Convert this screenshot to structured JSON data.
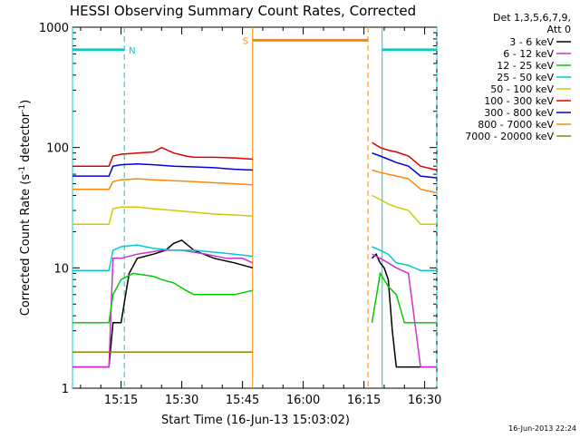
{
  "chart_data": {
    "type": "line",
    "title": "HESSI Observing Summary Count Rates, Corrected",
    "xlabel": "Start Time (16-Jun-13 15:03:02)",
    "ylabel": "Corrected Count Rate (s⁻¹ detector⁻¹)",
    "ylabel_main": "Corrected Count Rate (s",
    "ylabel_mid": " detector",
    "ylabel_end": ")",
    "ylabel_sup": "-1",
    "x_unit": "minutes after 15:03:02",
    "xlim": [
      0,
      90
    ],
    "ylim": [
      1,
      1000
    ],
    "yscale": "log",
    "x_ticks": [
      {
        "x": 12,
        "label": "15:15"
      },
      {
        "x": 27,
        "label": "15:30"
      },
      {
        "x": 42,
        "label": "15:45"
      },
      {
        "x": 57,
        "label": "16:00"
      },
      {
        "x": 72,
        "label": "16:15"
      },
      {
        "x": 87,
        "label": "16:30"
      }
    ],
    "y_ticks": [
      {
        "y": 1,
        "label": "1"
      },
      {
        "y": 10,
        "label": "10"
      },
      {
        "y": 100,
        "label": "100"
      },
      {
        "y": 1000,
        "label": "1000"
      }
    ],
    "legend_position": "right",
    "legend_header": [
      "Det 1,3,5,6,7,9,",
      "Att 0"
    ],
    "series": [
      {
        "name": "3 - 6 keV",
        "color": "#000000",
        "x": [
          0,
          9,
          10,
          12,
          14,
          16,
          20,
          23,
          25,
          27,
          30,
          35,
          40,
          44.5,
          72.5,
          74,
          75,
          76,
          77,
          78,
          79,
          80,
          83,
          86,
          90
        ],
        "y": [
          1.5,
          1.5,
          3.5,
          3.5,
          9,
          12,
          13,
          14,
          16,
          17,
          14,
          12,
          11,
          10,
          null,
          12,
          13,
          11,
          10,
          8,
          3,
          1.5,
          1.5,
          1.5,
          1.5
        ]
      },
      {
        "name": "6 - 12 keV",
        "color": "#cc33cc",
        "x": [
          0,
          9,
          10,
          12,
          16,
          22,
          27,
          33,
          38,
          42,
          44.5,
          72.5,
          74,
          76,
          78,
          80,
          83,
          86,
          90
        ],
        "y": [
          1.5,
          1.5,
          12,
          12,
          13,
          14,
          14,
          13,
          12,
          12,
          11,
          null,
          13,
          12,
          11,
          10,
          9,
          1.5,
          1.5
        ]
      },
      {
        "name": "12 - 25 keV",
        "color": "#00cc00",
        "x": [
          0,
          9,
          10,
          12,
          15,
          20,
          22,
          25,
          28,
          30,
          35,
          40,
          44.5,
          72.5,
          74,
          76,
          78,
          80,
          82,
          83,
          86,
          90
        ],
        "y": [
          3.5,
          3.5,
          6,
          8,
          9,
          8.5,
          8,
          7.5,
          6.5,
          6,
          6,
          6,
          6.5,
          null,
          3.5,
          9,
          7,
          6,
          3.5,
          3.5,
          3.5,
          3.5
        ]
      },
      {
        "name": "25 - 50 keV",
        "color": "#00cccc",
        "x": [
          0,
          9,
          10,
          12,
          16,
          20,
          25,
          30,
          35,
          40,
          44.5,
          72.5,
          74,
          76,
          78,
          80,
          83,
          86,
          90
        ],
        "y": [
          9.5,
          9.5,
          14,
          15,
          15.5,
          14.5,
          14,
          14,
          13.5,
          13,
          12.5,
          null,
          15,
          14,
          13,
          11,
          10.5,
          9.5,
          9.5
        ]
      },
      {
        "name": "50 - 100 keV",
        "color": "#cccc00",
        "x": [
          0,
          9,
          10,
          12,
          16,
          20,
          25,
          30,
          35,
          40,
          44.5,
          72.5,
          74,
          76,
          78,
          80,
          83,
          86,
          90
        ],
        "y": [
          23,
          23,
          31,
          32,
          32,
          31,
          30,
          29,
          28,
          27.5,
          27,
          null,
          40,
          37,
          34,
          32,
          30,
          23,
          23
        ]
      },
      {
        "name": "100 - 300 keV",
        "color": "#dd0000",
        "x": [
          0,
          9,
          10,
          12,
          16,
          20,
          22,
          25,
          28,
          30,
          35,
          40,
          44.5,
          72.5,
          74,
          76,
          78,
          80,
          83,
          86,
          90
        ],
        "y": [
          70,
          70,
          85,
          88,
          90,
          92,
          100,
          90,
          85,
          83,
          83,
          82,
          80,
          null,
          110,
          100,
          95,
          92,
          85,
          70,
          65
        ]
      },
      {
        "name": "300 - 800 keV",
        "color": "#0000dd",
        "x": [
          0,
          9,
          10,
          12,
          16,
          20,
          25,
          30,
          35,
          40,
          44.5,
          72.5,
          74,
          76,
          78,
          80,
          83,
          86,
          90
        ],
        "y": [
          58,
          58,
          70,
          72,
          73,
          72,
          70,
          69,
          68,
          66,
          65,
          null,
          90,
          85,
          80,
          75,
          70,
          58,
          56
        ]
      },
      {
        "name": "800 - 7000 keV",
        "color": "#ff8800",
        "x": [
          0,
          9,
          10,
          12,
          16,
          20,
          25,
          30,
          35,
          40,
          44.5,
          72.5,
          74,
          76,
          78,
          80,
          83,
          86,
          90
        ],
        "y": [
          45,
          45,
          52,
          54,
          55,
          54,
          53,
          52,
          51,
          50,
          49,
          null,
          65,
          62,
          60,
          58,
          55,
          45,
          42
        ]
      },
      {
        "name": "7000 - 20000 keV",
        "color": "#888800",
        "x": [
          0,
          44.5,
          72.5,
          90
        ],
        "y": [
          2,
          2,
          null,
          2
        ]
      }
    ]
  },
  "annotations": {
    "attenuator_marks": [
      {
        "x": 0,
        "color": "#00cccc"
      },
      {
        "x": 12.8,
        "color": "#00cccc"
      },
      {
        "x": 44.5,
        "color": "#ff8800"
      },
      {
        "x": 73,
        "color": "#ff8800"
      },
      {
        "x": 76.5,
        "color": "#00cccc"
      },
      {
        "x": 90,
        "color": "#00cccc"
      }
    ],
    "night_label": "N",
    "saa_label": "S",
    "night_bar_level": 650,
    "saa_bar_level": 780,
    "night_segments": [
      [
        0,
        12.8
      ],
      [
        76.5,
        90
      ]
    ],
    "saa_segment": [
      44.5,
      73
    ]
  },
  "footer": {
    "timestamp": "16-Jun-2013 22:24"
  }
}
